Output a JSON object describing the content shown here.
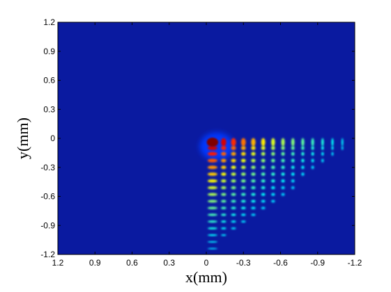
{
  "chart_data": {
    "type": "heatmap",
    "title": "",
    "xlabel": "x(mm)",
    "ylabel": "y(mm)",
    "xlim": [
      1.2,
      -1.2
    ],
    "ylim": [
      -1.2,
      1.2
    ],
    "x_reversed": true,
    "x_ticks": [
      1.2,
      0.9,
      0.6,
      0.3,
      0,
      -0.3,
      -0.6,
      -0.9,
      -1.2
    ],
    "x_tick_labels": [
      "1.2",
      "0.9",
      "0.6",
      "0.3",
      "0",
      "-0.3",
      "-0.6",
      "-0.9",
      "-1.2"
    ],
    "y_ticks": [
      1.2,
      0.9,
      0.6,
      0.3,
      0,
      -0.3,
      -0.6,
      -0.9,
      -1.2
    ],
    "y_tick_labels": [
      "1.2",
      "0.9",
      "0.6",
      "0.3",
      "0",
      "-0.3",
      "-0.6",
      "-0.9",
      "-1.2"
    ],
    "grid": false,
    "colormap": "jet",
    "background_color": "#0a1aa0",
    "peak": {
      "x": -0.05,
      "y": -0.04,
      "intensity": 1.0
    },
    "fringe_spacing_mm": 0.085,
    "horizontal_lobes_x": [
      -0.05,
      -0.14,
      -0.22,
      -0.3,
      -0.38,
      -0.46,
      -0.54,
      -0.62,
      -0.7,
      -0.78,
      -0.86,
      -0.94,
      -1.02,
      -1.1
    ],
    "vertical_lobes_y": [
      -0.04,
      -0.1,
      -0.16,
      -0.23,
      -0.3,
      -0.37,
      -0.44,
      -0.51,
      -0.58,
      -0.65,
      -0.72,
      -0.79,
      -0.86,
      -0.93,
      -1.0,
      -1.07,
      -1.14
    ]
  }
}
